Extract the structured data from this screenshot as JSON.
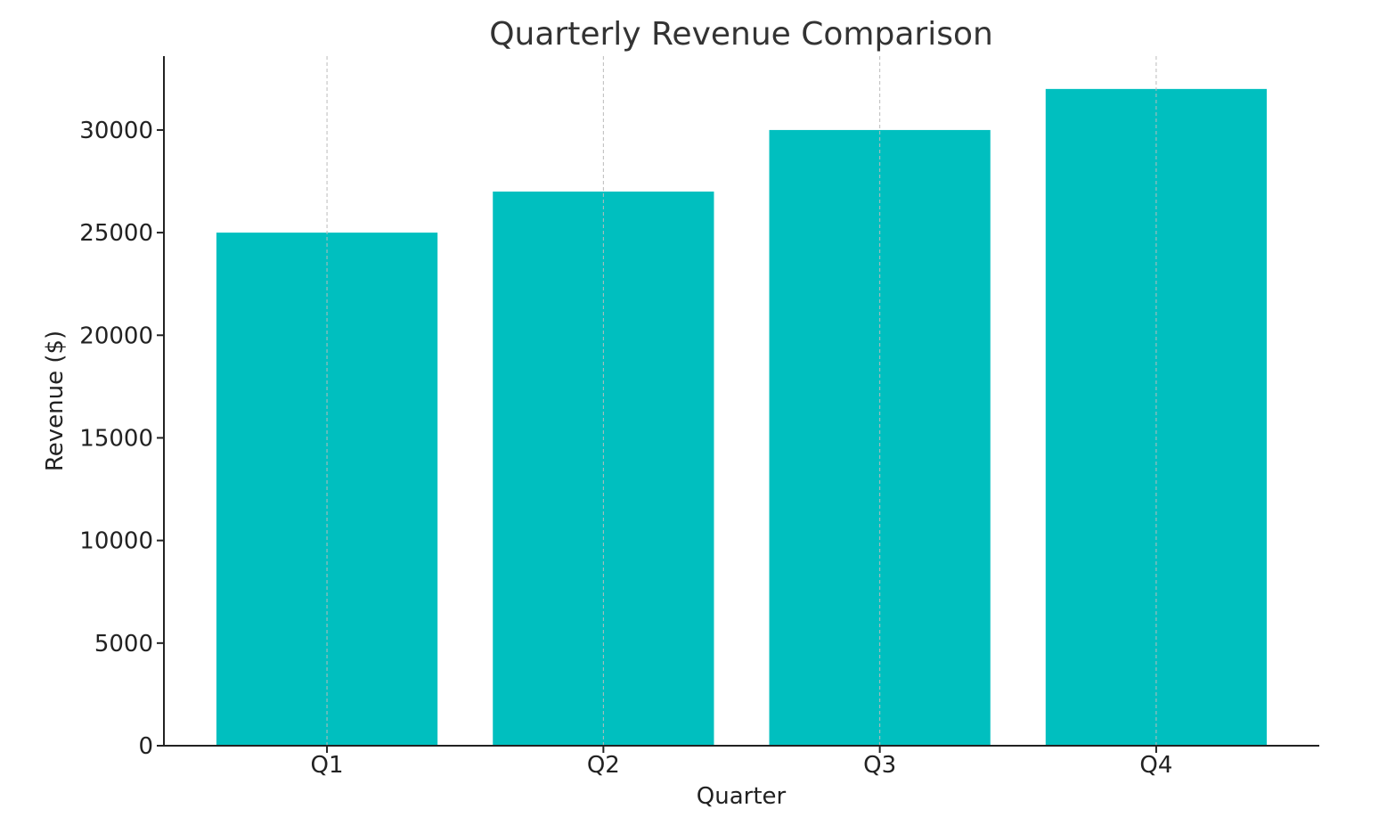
{
  "chart_data": {
    "type": "bar",
    "title": "Quarterly Revenue Comparison",
    "xlabel": "Quarter",
    "ylabel": "Revenue ($)",
    "categories": [
      "Q1",
      "Q2",
      "Q3",
      "Q4"
    ],
    "values": [
      25000,
      27000,
      30000,
      32000
    ],
    "ylim": [
      0,
      33600
    ],
    "yticks": [
      0,
      5000,
      10000,
      15000,
      20000,
      25000,
      30000
    ],
    "grid": {
      "x": true,
      "y": false
    },
    "bar_color": "#00BFBF"
  }
}
